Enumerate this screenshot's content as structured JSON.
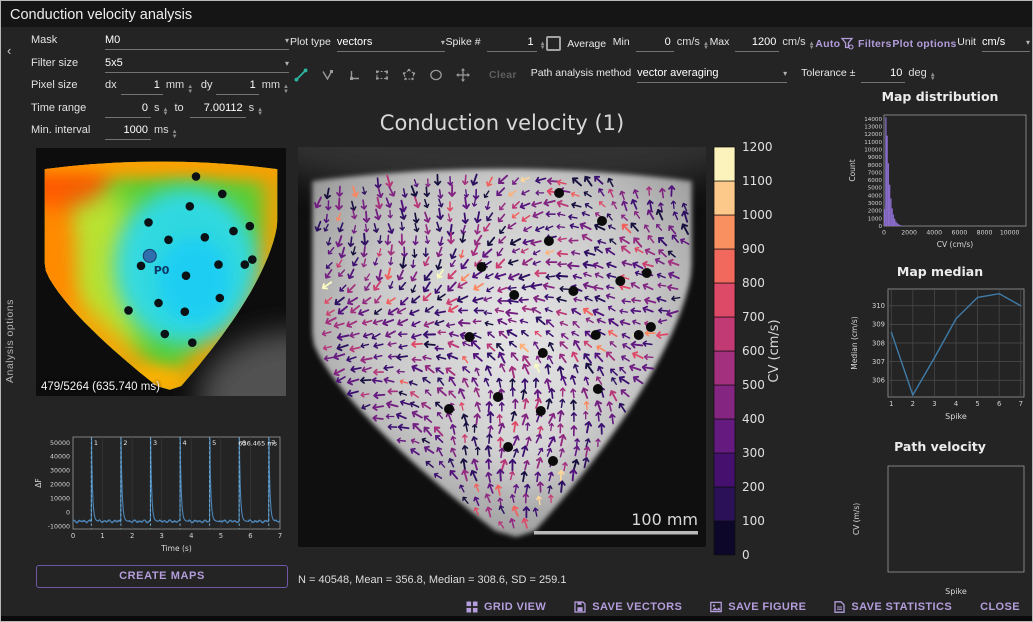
{
  "window": {
    "title": "Conduction velocity analysis"
  },
  "sidebar": {
    "label": "Analysis options",
    "collapse_icon": "‹"
  },
  "options": {
    "mask": {
      "label": "Mask",
      "value": "M0"
    },
    "filter_size": {
      "label": "Filter size",
      "value": "5x5"
    },
    "pixel_size": {
      "label": "Pixel size",
      "dx_label": "dx",
      "dx_value": "1",
      "dx_unit": "mm",
      "dy_label": "dy",
      "dy_value": "1",
      "dy_unit": "mm"
    },
    "time_range": {
      "label": "Time range",
      "from_value": "0",
      "from_unit": "s",
      "to_label": "to",
      "to_value": "7.00112",
      "to_unit": "s"
    },
    "min_interval": {
      "label": "Min. interval",
      "value": "1000",
      "unit": "ms"
    }
  },
  "preview": {
    "counter": "479/5264 (635.740 ms)",
    "marker_label": "P0",
    "marker_pos": [
      0.455,
      0.435
    ]
  },
  "create_maps_label": "CREATE MAPS",
  "toolbar": {
    "plot_type": {
      "label": "Plot type",
      "value": "vectors"
    },
    "spike": {
      "label": "Spike #",
      "value": "1"
    },
    "average": {
      "label": "Average",
      "checked": false
    },
    "min": {
      "label": "Min",
      "value": "0",
      "unit": "cm/s"
    },
    "max": {
      "label": "Max",
      "value": "1200",
      "unit": "cm/s"
    },
    "auto_label": "Auto",
    "filters_label": "Filters",
    "plot_options_label": "Plot options",
    "unit": {
      "label": "Unit",
      "value": "cm/s"
    },
    "tools": [
      "line-tool",
      "polyline-tool",
      "angle-tool",
      "rectangle-tool",
      "polygon-tool",
      "ellipse-tool",
      "move-tool"
    ],
    "clear_label": "Clear",
    "path_method": {
      "label": "Path analysis method",
      "value": "vector averaging"
    },
    "tolerance": {
      "label": "Tolerance ±",
      "value": "10",
      "unit": "deg"
    }
  },
  "figure": {
    "title": "Conduction velocity (1)",
    "scale_bar_label": "100 mm",
    "stats": "N = 40548, Mean = 356.8, Median = 308.6, SD = 259.1",
    "colorbar": {
      "label": "CV (cm/s)",
      "tick_min": 0,
      "tick_max": 1200,
      "tick_step": 100,
      "colors": [
        "#0d0829",
        "#2a1158",
        "#45106e",
        "#651a80",
        "#842681",
        "#a2307e",
        "#c23a74",
        "#dd4a68",
        "#f0695c",
        "#f9905f",
        "#fdc98a",
        "#fbf3bb"
      ]
    },
    "dots": [
      [
        0.64,
        0.115
      ],
      [
        0.745,
        0.185
      ],
      [
        0.615,
        0.235
      ],
      [
        0.45,
        0.3
      ],
      [
        0.79,
        0.335
      ],
      [
        0.855,
        0.315
      ],
      [
        0.53,
        0.37
      ],
      [
        0.675,
        0.36
      ],
      [
        0.865,
        0.45
      ],
      [
        0.42,
        0.475
      ],
      [
        0.6,
        0.515
      ],
      [
        0.73,
        0.47
      ],
      [
        0.835,
        0.47
      ],
      [
        0.49,
        0.625
      ],
      [
        0.735,
        0.605
      ],
      [
        0.595,
        0.66
      ],
      [
        0.37,
        0.655
      ],
      [
        0.515,
        0.75
      ],
      [
        0.625,
        0.785
      ]
    ]
  },
  "chart_data": [
    {
      "id": "activation-signal",
      "type": "line",
      "xlabel": "Time (s)",
      "ylabel": "ΔF",
      "xlim": [
        0,
        7
      ],
      "ylim": [
        -12000,
        54000
      ],
      "xticks": [
        0,
        1,
        2,
        3,
        4,
        5,
        6,
        7
      ],
      "yticks": [
        -10000,
        0,
        10000,
        20000,
        30000,
        40000,
        50000
      ],
      "spike_times": [
        0.62,
        1.62,
        2.62,
        3.62,
        4.62,
        5.62,
        6.62
      ],
      "spike_labels": [
        "1",
        "2",
        "3",
        "4",
        "5",
        "6",
        "7"
      ],
      "baseline": -6500,
      "peak": 52500,
      "annotation": "636.465 ms",
      "line_color": "#4d86b8",
      "marker_color": "#79b6d9",
      "grid": true
    },
    {
      "id": "map-distribution",
      "type": "bar",
      "title": "Map distribution",
      "xlabel": "CV (cm/s)",
      "ylabel": "Count",
      "xlim": [
        0,
        11300
      ],
      "ylim": [
        0,
        14500
      ],
      "xticks": [
        0,
        2000,
        4000,
        6000,
        8000,
        10000
      ],
      "ytick_step": 1000,
      "ytick_max": 14000,
      "bin_start": 0,
      "bin_width": 100,
      "counts": [
        2200,
        14200,
        11800,
        8200,
        5400,
        3600,
        2300,
        1500,
        950,
        600,
        380,
        240,
        150,
        90,
        55,
        35,
        20,
        12,
        8,
        5
      ],
      "bar_color": "#8d6fd1",
      "grid": false
    },
    {
      "id": "map-median",
      "type": "line",
      "title": "Map median",
      "xlabel": "Spike",
      "ylabel": "Median (cm/s)",
      "x": [
        1,
        2,
        3,
        4,
        5,
        6,
        7
      ],
      "values": [
        308.6,
        305.2,
        307.2,
        309.3,
        310.45,
        310.65,
        310.0
      ],
      "xlim": [
        0.85,
        7.15
      ],
      "ylim": [
        305.1,
        310.9
      ],
      "xticks": [
        1,
        2,
        3,
        4,
        5,
        6,
        7
      ],
      "yticks": [
        306,
        307,
        308,
        309,
        310
      ],
      "line_color": "#3f7ca8",
      "grid": true
    },
    {
      "id": "path-velocity",
      "type": "line",
      "title": "Path velocity",
      "xlabel": "Spike",
      "ylabel": "CV (m/s)",
      "x": [],
      "values": [],
      "empty": true,
      "grid": false
    }
  ],
  "footer": {
    "accent": "#b39ddb",
    "buttons": [
      {
        "label": "GRID VIEW",
        "icon": "grid-icon"
      },
      {
        "label": "SAVE VECTORS",
        "icon": "save-icon"
      },
      {
        "label": "SAVE FIGURE",
        "icon": "image-icon"
      },
      {
        "label": "SAVE STATISTICS",
        "icon": "file-icon"
      },
      {
        "label": "CLOSE",
        "icon": null
      }
    ]
  }
}
